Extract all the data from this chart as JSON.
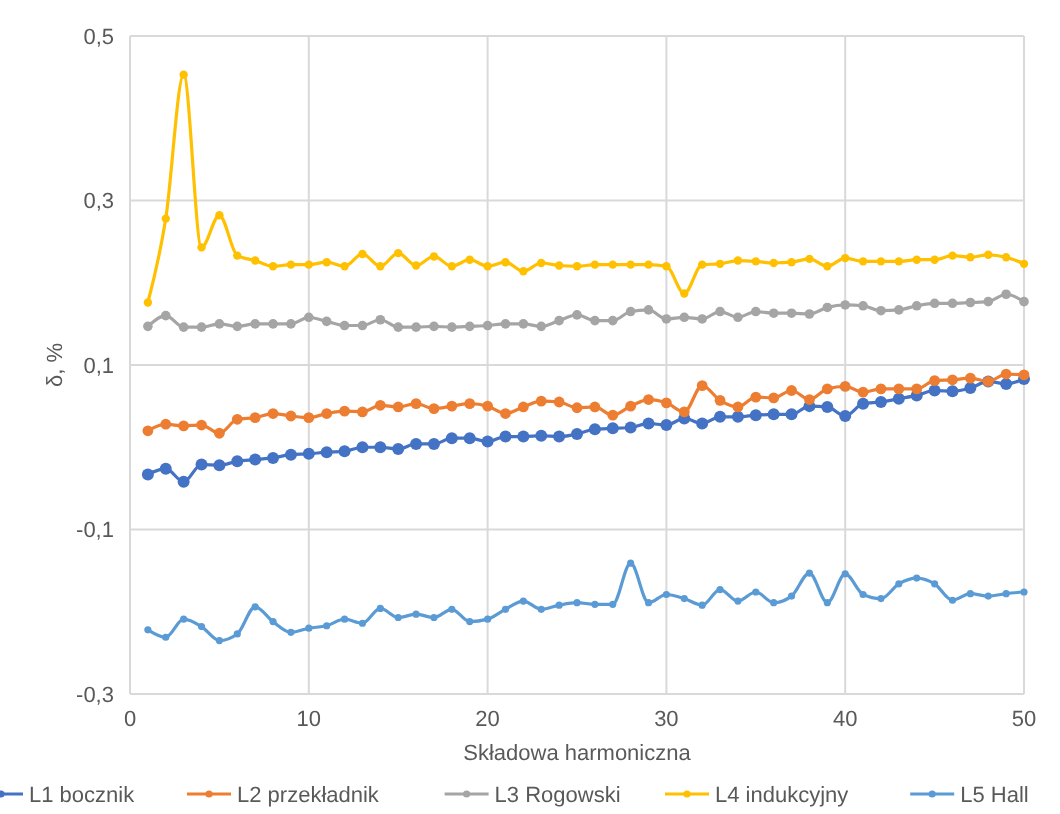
{
  "chart_data": {
    "type": "line",
    "xlabel": "Składowa harmoniczna",
    "ylabel": "δ, %",
    "x": [
      1,
      2,
      3,
      4,
      5,
      6,
      7,
      8,
      9,
      10,
      11,
      12,
      13,
      14,
      15,
      16,
      17,
      18,
      19,
      20,
      21,
      22,
      23,
      24,
      25,
      26,
      27,
      28,
      29,
      30,
      31,
      32,
      33,
      34,
      35,
      36,
      37,
      38,
      39,
      40,
      41,
      42,
      43,
      44,
      45,
      46,
      47,
      48,
      49,
      50
    ],
    "series": [
      {
        "name": "L1 bocznik",
        "color": "#4472c4",
        "values": [
          -0.033,
          -0.026,
          -0.042,
          -0.021,
          -0.022,
          -0.017,
          -0.015,
          -0.013,
          -0.009,
          -0.008,
          -0.006,
          -0.005,
          0,
          0,
          -0.002,
          0.004,
          0.004,
          0.011,
          0.011,
          0.007,
          0.013,
          0.013,
          0.014,
          0.013,
          0.016,
          0.022,
          0.023,
          0.024,
          0.029,
          0.027,
          0.035,
          0.029,
          0.037,
          0.037,
          0.039,
          0.04,
          0.04,
          0.05,
          0.049,
          0.038,
          0.053,
          0.055,
          0.059,
          0.063,
          0.069,
          0.068,
          0.072,
          0.08,
          0.077,
          0.083
        ]
      },
      {
        "name": "L2 przekładnik",
        "color": "#ed7d31",
        "values": [
          0.02,
          0.028,
          0.026,
          0.027,
          0.017,
          0.034,
          0.036,
          0.041,
          0.038,
          0.036,
          0.041,
          0.044,
          0.043,
          0.051,
          0.049,
          0.053,
          0.047,
          0.05,
          0.053,
          0.05,
          0.041,
          0.049,
          0.056,
          0.055,
          0.048,
          0.049,
          0.039,
          0.05,
          0.058,
          0.054,
          0.043,
          0.075,
          0.057,
          0.049,
          0.061,
          0.06,
          0.069,
          0.058,
          0.071,
          0.074,
          0.067,
          0.071,
          0.071,
          0.071,
          0.081,
          0.082,
          0.084,
          0.08,
          0.089,
          0.088
        ]
      },
      {
        "name": "L3 Rogowski",
        "color": "#a5a5a5",
        "values": [
          0.147,
          0.16,
          0.146,
          0.146,
          0.15,
          0.147,
          0.15,
          0.15,
          0.15,
          0.158,
          0.153,
          0.148,
          0.148,
          0.155,
          0.146,
          0.146,
          0.147,
          0.146,
          0.147,
          0.148,
          0.15,
          0.15,
          0.147,
          0.154,
          0.161,
          0.154,
          0.154,
          0.165,
          0.167,
          0.156,
          0.158,
          0.156,
          0.165,
          0.158,
          0.165,
          0.163,
          0.163,
          0.162,
          0.17,
          0.173,
          0.172,
          0.166,
          0.167,
          0.172,
          0.175,
          0.175,
          0.176,
          0.177,
          0.186,
          0.177
        ]
      },
      {
        "name": "L4 indukcyjny",
        "color": "#ffc000",
        "values": [
          0.176,
          0.278,
          0.453,
          0.243,
          0.282,
          0.233,
          0.227,
          0.22,
          0.222,
          0.222,
          0.225,
          0.22,
          0.235,
          0.22,
          0.236,
          0.221,
          0.232,
          0.22,
          0.228,
          0.22,
          0.225,
          0.214,
          0.224,
          0.221,
          0.22,
          0.222,
          0.222,
          0.222,
          0.222,
          0.22,
          0.187,
          0.222,
          0.223,
          0.227,
          0.226,
          0.224,
          0.225,
          0.229,
          0.22,
          0.23,
          0.226,
          0.226,
          0.226,
          0.228,
          0.228,
          0.233,
          0.231,
          0.234,
          0.231,
          0.223
        ]
      },
      {
        "name": "L5 Hall",
        "color": "#5b9bd5",
        "values": [
          -0.222,
          -0.231,
          -0.209,
          -0.218,
          -0.235,
          -0.227,
          -0.194,
          -0.212,
          -0.225,
          -0.22,
          -0.217,
          -0.209,
          -0.214,
          -0.196,
          -0.207,
          -0.203,
          -0.207,
          -0.197,
          -0.212,
          -0.209,
          -0.197,
          -0.187,
          -0.197,
          -0.192,
          -0.189,
          -0.191,
          -0.191,
          -0.141,
          -0.189,
          -0.179,
          -0.184,
          -0.192,
          -0.173,
          -0.187,
          -0.176,
          -0.189,
          -0.181,
          -0.153,
          -0.189,
          -0.154,
          -0.179,
          -0.184,
          -0.166,
          -0.159,
          -0.166,
          -0.186,
          -0.178,
          -0.181,
          -0.178,
          -0.176
        ]
      }
    ],
    "xlim": [
      0,
      50
    ],
    "xticks": [
      0,
      10,
      20,
      30,
      40,
      50
    ],
    "ylim": [
      -0.3,
      0.5
    ],
    "yticks": [
      {
        "value": -0.3,
        "label": "-0,3"
      },
      {
        "value": -0.1,
        "label": "-0,1"
      },
      {
        "value": 0.1,
        "label": "0,1"
      },
      {
        "value": 0.3,
        "label": "0,3"
      },
      {
        "value": 0.5,
        "label": "0,5"
      }
    ],
    "grid": true,
    "legend": "bottom",
    "marker": "circle",
    "line_style": "solid"
  }
}
